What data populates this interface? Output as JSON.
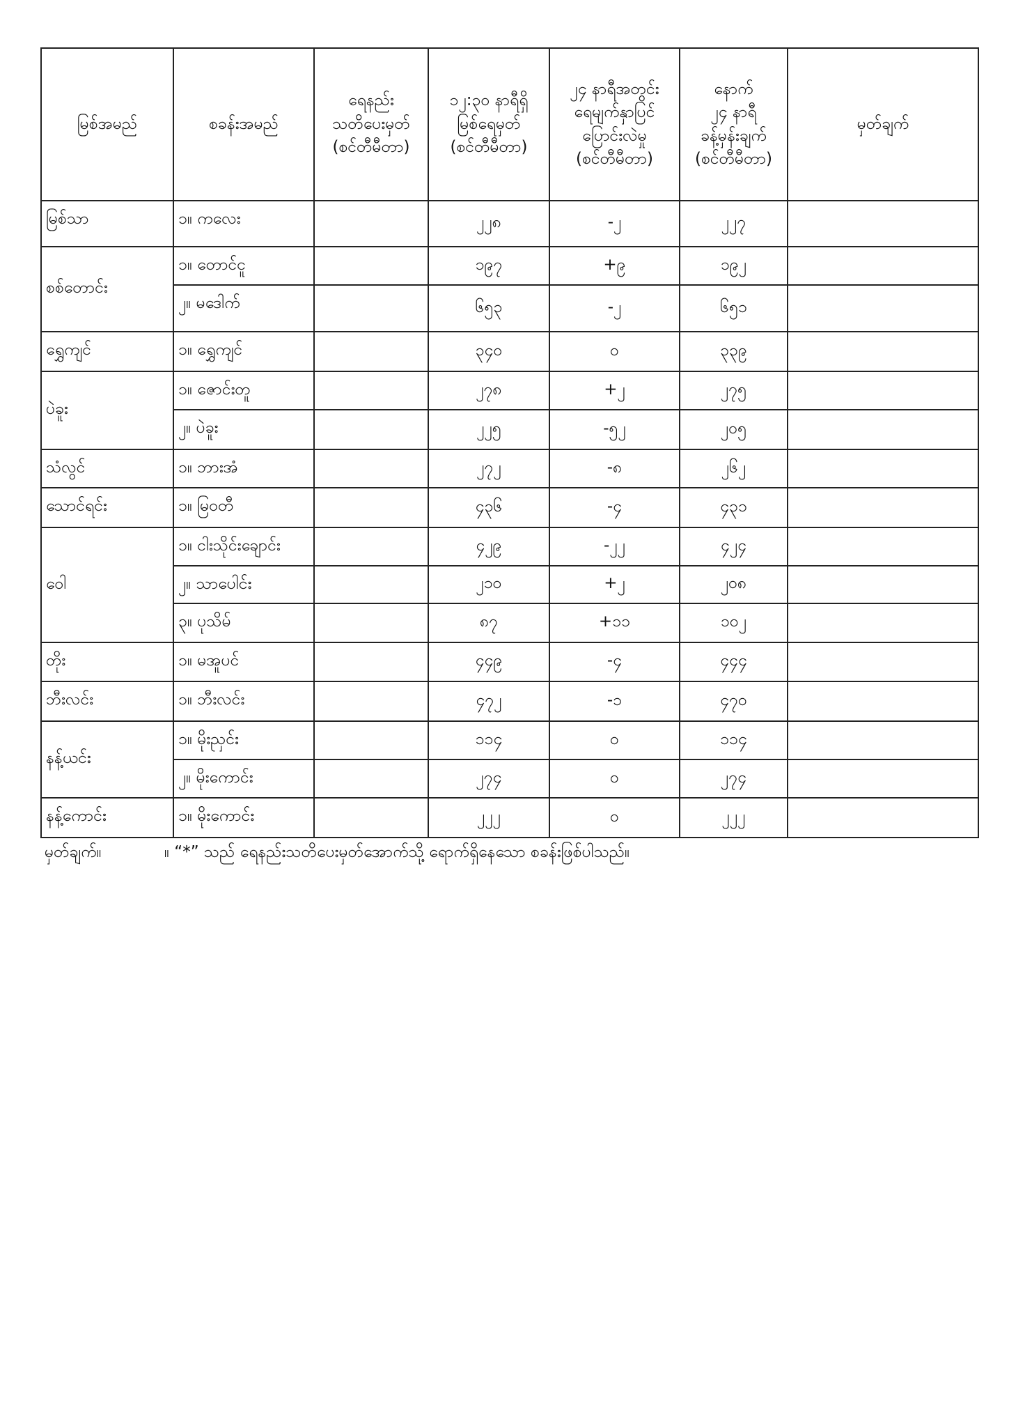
{
  "headers": [
    "မြစ်အမည်",
    "စခန်းအမည်",
    "ရေနည်း\nသတိပေးမှတ်\n(စင်တီမီတာ)",
    "၁၂:၃၀ နာရီရှိ\nမြစ်ရေမှတ်\n(စင်တီမီတာ)",
    "၂၄ နာရီအတွင်း\nရေမျက်နှာပြင်\nပြောင်းလဲမှု\n(စင်တီမီတာ)",
    "နောက်\n၂၄ နာရီ\nခန့်မှန်းချက်\n(စင်တီမီတာ)",
    "မှတ်ချက်"
  ],
  "rows": [
    {
      "river": "မြစ်သာ",
      "span": 1,
      "station": "၁။ ကလေး",
      "warning": "",
      "level": "၂၂၈",
      "change": "-၂",
      "forecast": "၂၂၇",
      "remark": ""
    },
    {
      "river": "စစ်တောင်း",
      "span": 2,
      "station": "၁။ တောင်ငူ",
      "warning": "",
      "level": "၁၉၇",
      "change": "+၉",
      "forecast": "၁၉၂",
      "remark": ""
    },
    {
      "river": "",
      "span": 0,
      "station": "၂။ မဒေါက်",
      "warning": "",
      "level": "၆၅၃",
      "change": "-၂",
      "forecast": "၆၅၁",
      "remark": ""
    },
    {
      "river": "ရွှေကျင်",
      "span": 1,
      "station": "၁။ ရွှေကျင်",
      "warning": "",
      "level": "၃၄၀",
      "change": "၀",
      "forecast": "၃၃၉",
      "remark": ""
    },
    {
      "river": "ပဲခူး",
      "span": 2,
      "station": "၁။ ဇောင်းတူ",
      "warning": "",
      "level": "၂၇၈",
      "change": "+၂",
      "forecast": "၂၇၅",
      "remark": ""
    },
    {
      "river": "",
      "span": 0,
      "station": "၂။ ပဲခူး",
      "warning": "",
      "level": "၂၂၅",
      "change": "-၅၂",
      "forecast": "၂၀၅",
      "remark": ""
    },
    {
      "river": "သံလွင်",
      "span": 1,
      "station": "၁။ ဘားအံ",
      "warning": "",
      "level": "၂၇၂",
      "change": "-၈",
      "forecast": "၂၆၂",
      "remark": ""
    },
    {
      "river": "သောင်ရင်း",
      "span": 1,
      "station": "၁။ မြဝတီ",
      "warning": "",
      "level": "၄၃၆",
      "change": "-၄",
      "forecast": "၄၃၁",
      "remark": ""
    },
    {
      "river": "ဝေါ",
      "span": 3,
      "station": "၁။ ငါးသိုင်းချောင်း",
      "warning": "",
      "level": "၄၂၉",
      "change": "-၂၂",
      "forecast": "၄၂၄",
      "remark": ""
    },
    {
      "river": "",
      "span": 0,
      "station": "၂။ သာပေါင်း",
      "warning": "",
      "level": "၂၁၀",
      "change": "+၂",
      "forecast": "၂၀၈",
      "remark": ""
    },
    {
      "river": "",
      "span": 0,
      "station": "၃။ ပုသိမ်",
      "warning": "",
      "level": "၈၇",
      "change": "+၁၁",
      "forecast": "၁၀၂",
      "remark": ""
    },
    {
      "river": "တိုး",
      "span": 1,
      "station": "၁။ မအူပင်",
      "warning": "",
      "level": "၄၄၉",
      "change": "-၄",
      "forecast": "၄၄၄",
      "remark": ""
    },
    {
      "river": "ဘီးလင်း",
      "span": 1,
      "station": "၁။ ဘီးလင်း",
      "warning": "",
      "level": "၄၇၂",
      "change": "-၁",
      "forecast": "၄၇၀",
      "remark": ""
    },
    {
      "river": "နန့်ယင်း",
      "span": 2,
      "station": "၁။ မိုးညှင်း",
      "warning": "",
      "level": "၁၁၄",
      "change": "၀",
      "forecast": "၁၁၄",
      "remark": ""
    },
    {
      "river": "",
      "span": 0,
      "station": "၂။ မိုးကောင်း",
      "warning": "",
      "level": "၂၇၄",
      "change": "၀",
      "forecast": "၂၇၄",
      "remark": ""
    },
    {
      "river": "နန့်ကောင်း",
      "span": 1,
      "station": "၁။ မိုးကောင်း",
      "warning": "",
      "level": "၂၂၂",
      "change": "၀",
      "forecast": "၂၂၂",
      "remark": ""
    }
  ],
  "note": {
    "label": "မှတ်ချက်။",
    "text": "။ “*” သည် ရေနည်းသတိပေးမှတ်အောက်သို့ ရောက်ရှိနေသော စခန်းဖြစ်ပါသည်။"
  }
}
